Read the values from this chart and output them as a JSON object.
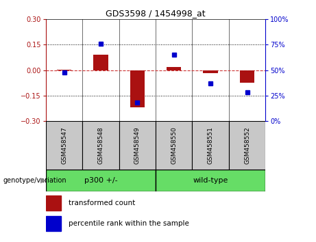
{
  "title": "GDS3598 / 1454998_at",
  "samples": [
    "GSM458547",
    "GSM458548",
    "GSM458549",
    "GSM458550",
    "GSM458551",
    "GSM458552"
  ],
  "red_bars": [
    0.003,
    0.09,
    -0.22,
    0.02,
    -0.018,
    -0.075
  ],
  "blue_percentiles": [
    48,
    76,
    18,
    65,
    37,
    28
  ],
  "ylim_left": [
    -0.3,
    0.3
  ],
  "ylim_right": [
    0,
    100
  ],
  "yticks_left": [
    -0.3,
    -0.15,
    0,
    0.15,
    0.3
  ],
  "yticks_right": [
    0,
    25,
    50,
    75,
    100
  ],
  "group_label": "genotype/variation",
  "bar_color": "#AA1111",
  "dot_color": "#0000CC",
  "zero_line_color": "#CC3333",
  "bg_plot": "#FFFFFF",
  "bg_label": "#C8C8C8",
  "bg_group": "#66DD66",
  "legend_red": "transformed count",
  "legend_blue": "percentile rank within the sample",
  "dotted_line_color": "#000000",
  "bar_width": 0.4,
  "groups": [
    {
      "label": "p300 +/-",
      "start": 0,
      "end": 3
    },
    {
      "label": "wild-type",
      "start": 3,
      "end": 6
    }
  ]
}
